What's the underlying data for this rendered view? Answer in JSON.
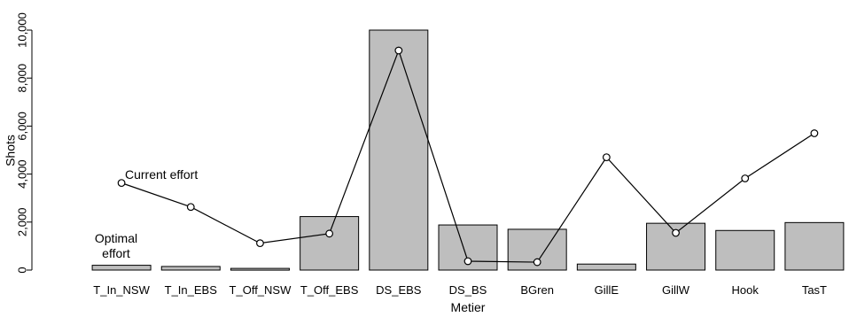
{
  "chart_data": {
    "type": "bar",
    "xlabel": "Metier",
    "ylabel": "Shots",
    "ylim": [
      0,
      10000
    ],
    "yticks": [
      0,
      2000,
      4000,
      6000,
      8000,
      10000
    ],
    "ytick_labels": [
      "0",
      "2,000",
      "4,000",
      "6,000",
      "8,000",
      "10,000"
    ],
    "grid": false,
    "categories": [
      "T_In_NSW",
      "T_In_EBS",
      "T_Off_NSW",
      "T_Off_EBS",
      "DS_EBS",
      "DS_BS",
      "BGren",
      "GillE",
      "GillW",
      "Hook",
      "TasT"
    ],
    "series": [
      {
        "type": "bar",
        "values": [
          200,
          150,
          70,
          2230,
          10000,
          1880,
          1700,
          250,
          1950,
          1650,
          1980
        ],
        "color": "#bebebe",
        "annotation": "Optimal\neffort"
      },
      {
        "type": "line",
        "values": [
          3630,
          2630,
          1120,
          1520,
          9150,
          370,
          330,
          4700,
          1550,
          3820,
          5700
        ],
        "color": "#000000",
        "annotation": "Current effort"
      }
    ]
  }
}
